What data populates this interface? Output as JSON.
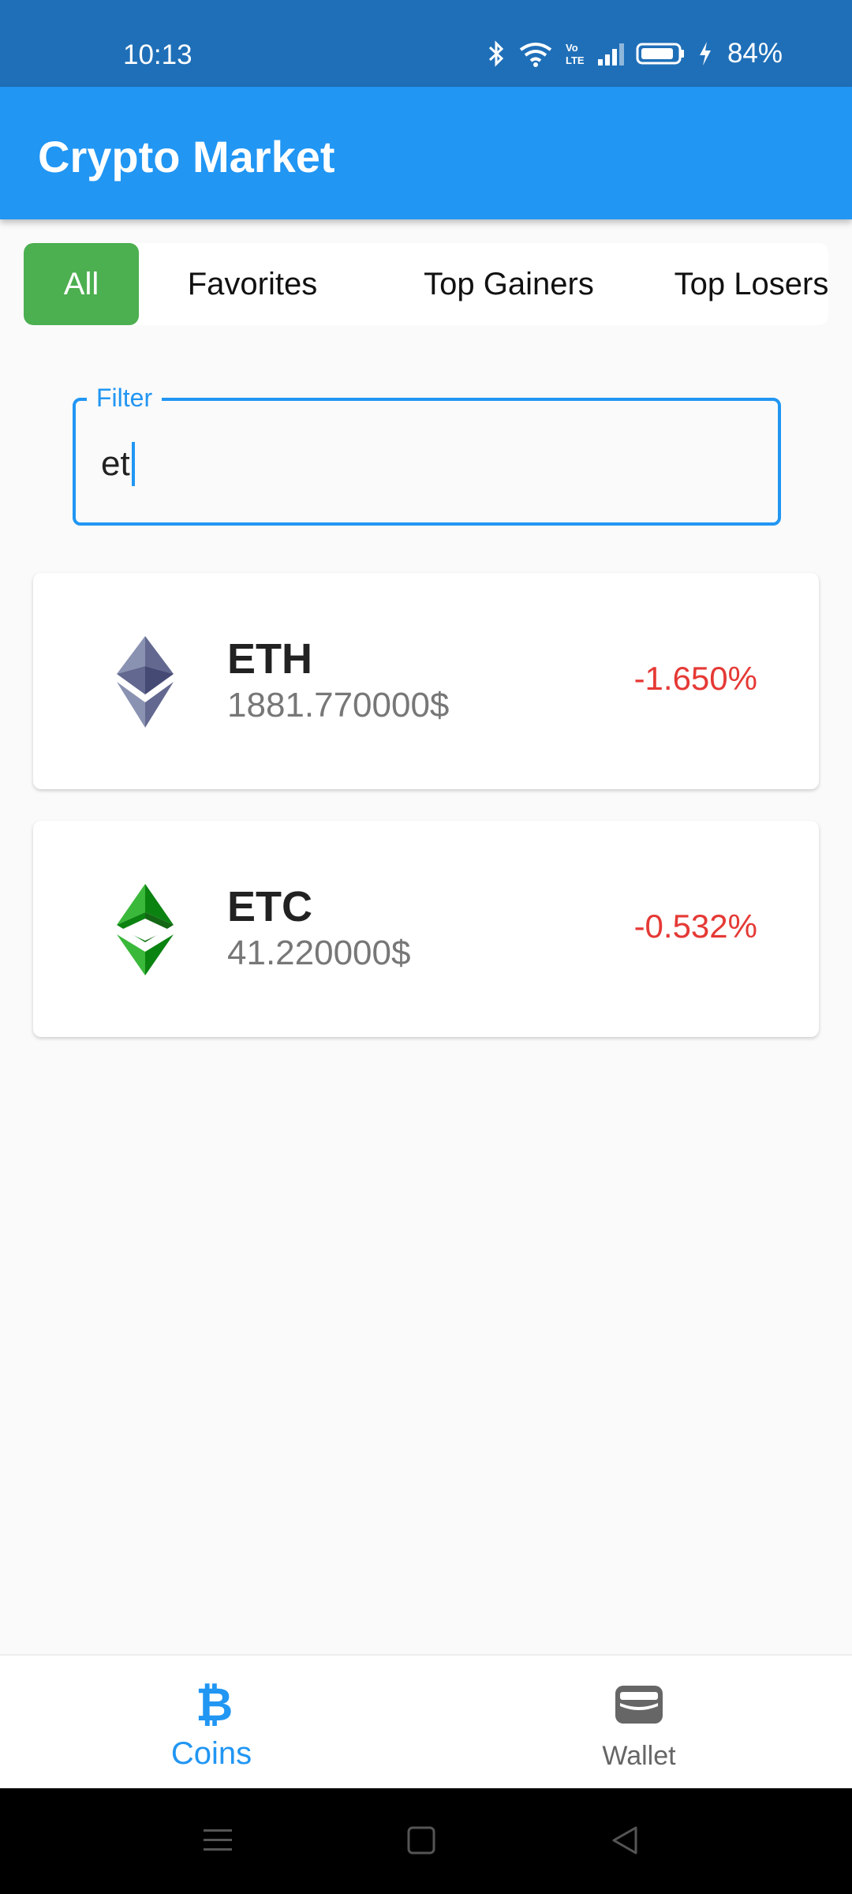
{
  "status_bar": {
    "time": "10:13",
    "battery": "84%"
  },
  "app_bar": {
    "title": "Crypto Market"
  },
  "tabs": [
    {
      "label": "All",
      "active": true
    },
    {
      "label": "Favorites",
      "active": false
    },
    {
      "label": "Top Gainers",
      "active": false
    },
    {
      "label": "Top Losers",
      "active": false
    }
  ],
  "filter": {
    "label": "Filter",
    "value": "et"
  },
  "coins": [
    {
      "symbol": "ETH",
      "price": "1881.770000$",
      "change": "-1.650%",
      "icon": "ethereum-icon"
    },
    {
      "symbol": "ETC",
      "price": "41.220000$",
      "change": "-0.532%",
      "icon": "ethereum-classic-icon"
    }
  ],
  "bottom_nav": [
    {
      "label": "Coins",
      "icon": "bitcoin-icon",
      "active": true
    },
    {
      "label": "Wallet",
      "icon": "wallet-icon",
      "active": false
    }
  ],
  "colors": {
    "status_bar": "#1F6FB8",
    "app_bar": "#2196F3",
    "active_tab": "#4CAF50",
    "negative_change": "#E53935"
  }
}
